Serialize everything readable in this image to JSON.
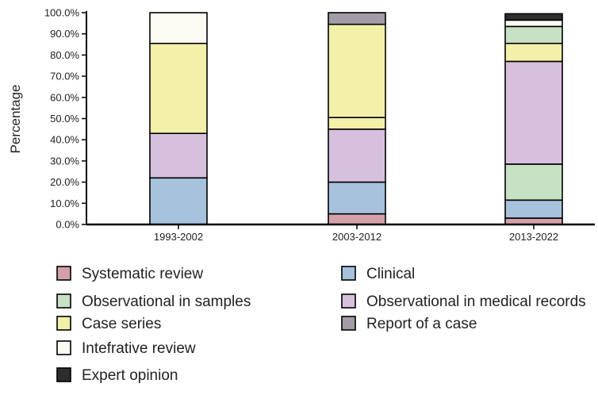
{
  "chart_data": {
    "type": "bar",
    "stacked": true,
    "ylabel": "Percentage",
    "xlabel": "",
    "ylim": [
      0,
      100
    ],
    "yticks": [
      "0.0%",
      "10.0%",
      "20.0%",
      "30.0%",
      "40.0%",
      "50.0%",
      "60.0%",
      "70.0%",
      "80.0%",
      "90.0%",
      "100.0%"
    ],
    "categories": [
      "1993-2002",
      "2003-2012",
      "2013-2022"
    ],
    "series": [
      {
        "name": "Systematic review",
        "color": "#d4a0aa",
        "values": [
          0,
          5,
          3
        ]
      },
      {
        "name": "Clinical",
        "color": "#a6c2dc",
        "values": [
          22,
          15,
          8.5
        ]
      },
      {
        "name": "Observational in samples",
        "color": "#c6e1c4",
        "values": [
          0,
          0,
          17
        ]
      },
      {
        "name": "Observational in medical records",
        "color": "#d7c0dd",
        "values": [
          21,
          25,
          48.5
        ]
      },
      {
        "name": "Report of a case",
        "color": "#a29ca8",
        "values": [
          0,
          0,
          0
        ]
      },
      {
        "name": "Case series",
        "color": "#f2f0a9",
        "values": [
          42.5,
          5.5,
          0
        ]
      },
      {
        "name": "Intefrative review",
        "color": "#fbfbf4",
        "values": [
          14.5,
          0,
          0
        ]
      },
      {
        "name": "Expert opinion",
        "color": "#2e2e30",
        "values": [
          0,
          0,
          0
        ]
      }
    ],
    "upper_segments": [
      [],
      [
        {
          "series": "Case series",
          "value": 44
        },
        {
          "series": "Report of a case",
          "value": 5.5
        }
      ],
      [
        {
          "series": "Case series",
          "value": 8.5
        },
        {
          "series": "Observational in samples",
          "value": 8
        },
        {
          "series": "Intefrative review",
          "value": 3
        },
        {
          "series": "Expert opinion",
          "value": 3
        }
      ]
    ],
    "legend_order": [
      "Systematic review",
      "Clinical",
      "Observational in samples",
      "Observational in medical records",
      "Case series",
      "Report of a case",
      "Intefrative review",
      "Expert opinion"
    ],
    "legend_placement": "bottom",
    "grid": false
  }
}
